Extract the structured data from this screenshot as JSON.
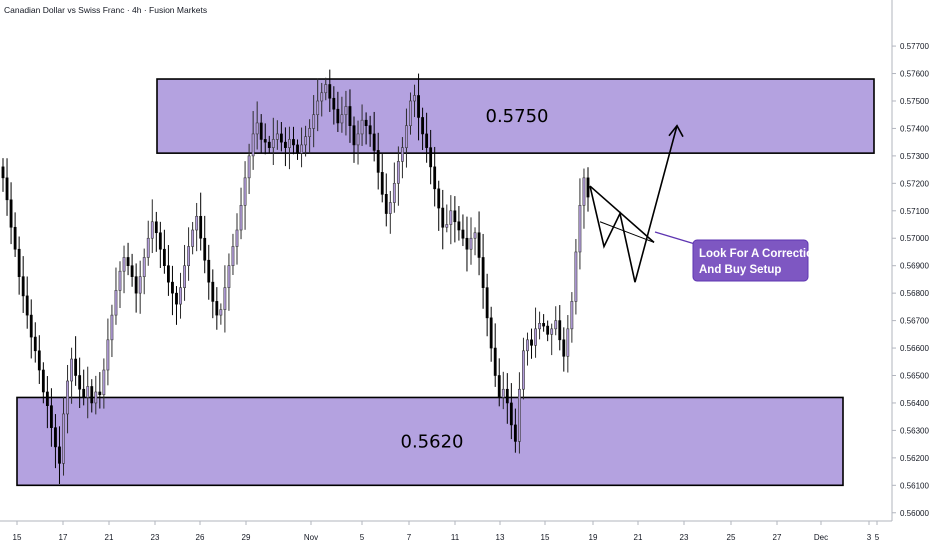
{
  "header": {
    "title": "Canadian Dollar vs Swiss Franc · 4h · Fusion Markets"
  },
  "colors": {
    "zone_fill": "#b4a2e0",
    "zone_stroke": "#000000",
    "callout_fill": "#7e57c2",
    "up_candle": "#b39ddb",
    "down_candle": "#000000",
    "projection": "#000000"
  },
  "chart_data": {
    "type": "candlestick",
    "title": "Canadian Dollar vs Swiss Franc · 4h · Fusion Markets",
    "ylim": [
      0.5597,
      0.57795
    ],
    "y_ticks": [
      "0.56000",
      "0.56100",
      "0.56200",
      "0.56300",
      "0.56400",
      "0.56500",
      "0.56600",
      "0.56700",
      "0.56800",
      "0.56900",
      "0.57000",
      "0.57100",
      "0.57200",
      "0.57300",
      "0.57400",
      "0.57500",
      "0.57600",
      "0.57700"
    ],
    "x_ticks": [
      "15",
      "17",
      "21",
      "23",
      "26",
      "29",
      "Nov",
      "5",
      "7",
      "11",
      "13",
      "15",
      "19",
      "21",
      "23",
      "25",
      "27",
      "Dec",
      "3",
      "5"
    ],
    "candle_count": 146,
    "price_path": [
      0.5722,
      0.5714,
      0.5704,
      0.5696,
      0.5686,
      0.5679,
      0.5672,
      0.5664,
      0.5659,
      0.5652,
      0.5644,
      0.5639,
      0.5631,
      0.5624,
      0.5618,
      0.5636,
      0.5648,
      0.5656,
      0.565,
      0.5645,
      0.5642,
      0.5646,
      0.564,
      0.5644,
      0.5643,
      0.5652,
      0.5663,
      0.5672,
      0.5681,
      0.5688,
      0.5693,
      0.569,
      0.5686,
      0.568,
      0.5686,
      0.5693,
      0.57,
      0.5706,
      0.5702,
      0.5696,
      0.569,
      0.5684,
      0.568,
      0.5676,
      0.5682,
      0.569,
      0.5697,
      0.5703,
      0.5708,
      0.57,
      0.5692,
      0.5684,
      0.5677,
      0.5672,
      0.5674,
      0.5682,
      0.569,
      0.5697,
      0.5703,
      0.5712,
      0.5722,
      0.573,
      0.5738,
      0.5742,
      0.5736,
      0.5735,
      0.5733,
      0.5736,
      0.5738,
      0.5735,
      0.5733,
      0.5736,
      0.5734,
      0.5731,
      0.5734,
      0.5737,
      0.574,
      0.5745,
      0.575,
      0.5753,
      0.5756,
      0.5751,
      0.5747,
      0.5742,
      0.5745,
      0.5748,
      0.5741,
      0.5734,
      0.5738,
      0.5743,
      0.5741,
      0.5738,
      0.5732,
      0.5724,
      0.5716,
      0.5709,
      0.5713,
      0.572,
      0.5728,
      0.5733,
      0.5741,
      0.575,
      0.5752,
      0.5744,
      0.5738,
      0.5733,
      0.5726,
      0.5718,
      0.5711,
      0.5704,
      0.5705,
      0.571,
      0.5706,
      0.5703,
      0.57,
      0.5696,
      0.57,
      0.5702,
      0.5693,
      0.5682,
      0.5671,
      0.566,
      0.565,
      0.5642,
      0.5645,
      0.564,
      0.5632,
      0.5626,
      0.5645,
      0.5659,
      0.5663,
      0.5661,
      0.5667,
      0.5669,
      0.5668,
      0.5665,
      0.5667,
      0.567,
      0.5663,
      0.5657,
      0.5667,
      0.5677,
      0.5695,
      0.5712,
      0.5722,
      0.5715
    ],
    "zones": [
      {
        "label": "0.5750",
        "low": 0.5731,
        "high": 0.5758
      },
      {
        "label": "0.5620",
        "low": 0.561,
        "high": 0.5642
      }
    ],
    "projection": [
      0.5719,
      0.5697,
      0.5709,
      0.5684,
      0.5741
    ],
    "annotation": "Look For A Correction And Buy Setup",
    "grid": false,
    "legend": "none"
  },
  "annotation": {
    "line1": "Look For A Correction",
    "line2": "And Buy Setup"
  }
}
